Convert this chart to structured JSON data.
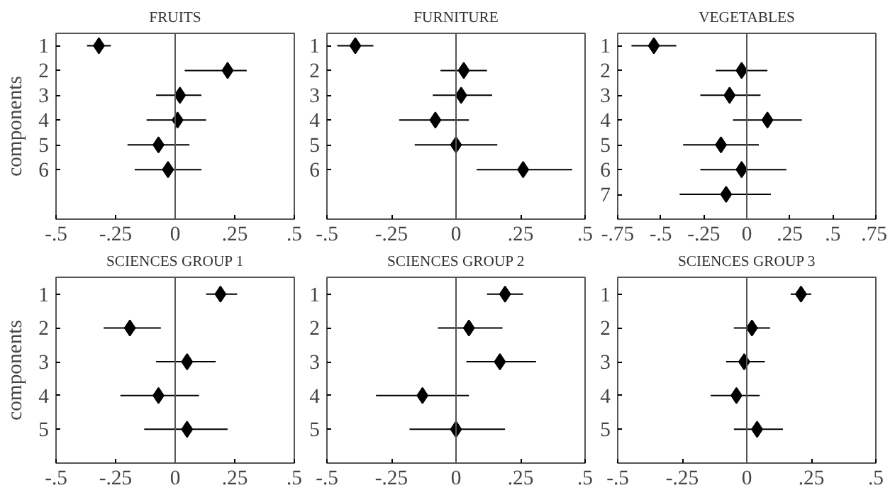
{
  "chart_data": [
    {
      "type": "scatter",
      "title": "FRUITS",
      "ylabel": "components",
      "orientation": "horizontal",
      "marker": "diamond",
      "categories": [
        "1",
        "2",
        "3",
        "4",
        "5",
        "6"
      ],
      "series": [
        {
          "color": "#000000",
          "values": [
            -0.32,
            0.22,
            0.02,
            0.01,
            -0.07,
            -0.03
          ],
          "errors": [
            [
              -0.37,
              -0.27
            ],
            [
              0.04,
              0.3
            ],
            [
              -0.08,
              0.11
            ],
            [
              -0.12,
              0.13
            ],
            [
              -0.2,
              0.06
            ],
            [
              -0.17,
              0.11
            ]
          ]
        }
      ],
      "xlim": [
        -0.5,
        0.5
      ],
      "xticks": [
        {
          "value": -0.5,
          "label": "-.5"
        },
        {
          "value": -0.25,
          "label": "-.25"
        },
        0,
        {
          "value": 0.25,
          "label": ".25"
        },
        {
          "value": 0.5,
          "label": ".5"
        }
      ],
      "ref_lines": [
        {
          "axis": "x",
          "value": 0,
          "color": "#555555"
        }
      ]
    },
    {
      "type": "scatter",
      "title": "FURNITURE",
      "orientation": "horizontal",
      "marker": "diamond",
      "categories": [
        "1",
        "2",
        "3",
        "4",
        "5",
        "6"
      ],
      "series": [
        {
          "color": "#000000",
          "values": [
            -0.39,
            0.03,
            0.02,
            -0.08,
            0,
            0.26
          ],
          "errors": [
            [
              -0.46,
              -0.32
            ],
            [
              -0.06,
              0.12
            ],
            [
              -0.09,
              0.14
            ],
            [
              -0.22,
              0.05
            ],
            [
              -0.16,
              0.16
            ],
            [
              0.08,
              0.45
            ]
          ]
        }
      ],
      "xlim": [
        -0.5,
        0.5
      ],
      "xticks": [
        {
          "value": -0.5,
          "label": "-.5"
        },
        {
          "value": -0.25,
          "label": "-.25"
        },
        0,
        {
          "value": 0.25,
          "label": ".25"
        },
        {
          "value": 0.5,
          "label": ".5"
        }
      ],
      "ref_lines": [
        {
          "axis": "x",
          "value": 0,
          "color": "#555555"
        }
      ]
    },
    {
      "type": "scatter",
      "title": "VEGETABLES",
      "orientation": "horizontal",
      "marker": "diamond",
      "categories": [
        "1",
        "2",
        "3",
        "4",
        "5",
        "6",
        "7"
      ],
      "series": [
        {
          "color": "#000000",
          "values": [
            -0.54,
            -0.03,
            -0.1,
            0.12,
            -0.15,
            -0.03,
            -0.12
          ],
          "errors": [
            [
              -0.67,
              -0.41
            ],
            [
              -0.18,
              0.12
            ],
            [
              -0.27,
              0.08
            ],
            [
              -0.08,
              0.32
            ],
            [
              -0.37,
              0.07
            ],
            [
              -0.27,
              0.23
            ],
            [
              -0.39,
              0.14
            ]
          ]
        }
      ],
      "xlim": [
        -0.75,
        0.75
      ],
      "xticks": [
        {
          "value": -0.75,
          "label": "-.75"
        },
        {
          "value": -0.5,
          "label": "-.5"
        },
        {
          "value": -0.25,
          "label": "-.25"
        },
        0,
        {
          "value": 0.25,
          "label": ".25"
        },
        {
          "value": 0.5,
          "label": ".5"
        },
        {
          "value": 0.75,
          "label": ".75"
        }
      ],
      "ref_lines": [
        {
          "axis": "x",
          "value": 0,
          "color": "#555555"
        }
      ]
    },
    {
      "type": "scatter",
      "title": "SCIENCES GROUP 1",
      "ylabel": "components",
      "orientation": "horizontal",
      "marker": "diamond",
      "categories": [
        "1",
        "2",
        "3",
        "4",
        "5"
      ],
      "series": [
        {
          "color": "#000000",
          "values": [
            0.19,
            -0.19,
            0.05,
            -0.07,
            0.05
          ],
          "errors": [
            [
              0.13,
              0.26
            ],
            [
              -0.3,
              -0.06
            ],
            [
              -0.08,
              0.17
            ],
            [
              -0.23,
              0.1
            ],
            [
              -0.13,
              0.22
            ]
          ]
        }
      ],
      "xlim": [
        -0.5,
        0.5
      ],
      "xticks": [
        {
          "value": -0.5,
          "label": "-.5"
        },
        {
          "value": -0.25,
          "label": "-.25"
        },
        0,
        {
          "value": 0.25,
          "label": ".25"
        },
        {
          "value": 0.5,
          "label": ".5"
        }
      ],
      "ref_lines": [
        {
          "axis": "x",
          "value": 0,
          "color": "#555555"
        }
      ]
    },
    {
      "type": "scatter",
      "title": "SCIENCES GROUP 2",
      "orientation": "horizontal",
      "marker": "diamond",
      "categories": [
        "1",
        "2",
        "3",
        "4",
        "5"
      ],
      "series": [
        {
          "color": "#000000",
          "values": [
            0.19,
            0.05,
            0.17,
            -0.13,
            0
          ],
          "errors": [
            [
              0.12,
              0.26
            ],
            [
              -0.07,
              0.18
            ],
            [
              0.04,
              0.31
            ],
            [
              -0.31,
              0.05
            ],
            [
              -0.18,
              0.19
            ]
          ]
        }
      ],
      "xlim": [
        -0.5,
        0.5
      ],
      "xticks": [
        {
          "value": -0.5,
          "label": "-.5"
        },
        {
          "value": -0.25,
          "label": "-.25"
        },
        0,
        {
          "value": 0.25,
          "label": ".25"
        },
        {
          "value": 0.5,
          "label": ".5"
        }
      ],
      "ref_lines": [
        {
          "axis": "x",
          "value": 0,
          "color": "#555555"
        }
      ]
    },
    {
      "type": "scatter",
      "title": "SCIENCES GROUP 3",
      "orientation": "horizontal",
      "marker": "diamond",
      "categories": [
        "1",
        "2",
        "3",
        "4",
        "5"
      ],
      "series": [
        {
          "color": "#000000",
          "values": [
            0.21,
            0.02,
            -0.01,
            -0.04,
            0.04
          ],
          "errors": [
            [
              0.17,
              0.25
            ],
            [
              -0.05,
              0.09
            ],
            [
              -0.08,
              0.07
            ],
            [
              -0.14,
              0.05
            ],
            [
              -0.05,
              0.14
            ]
          ]
        }
      ],
      "xlim": [
        -0.5,
        0.5
      ],
      "xticks": [
        {
          "value": -0.5,
          "label": "-.5"
        },
        {
          "value": -0.25,
          "label": "-.25"
        },
        0,
        {
          "value": 0.25,
          "label": ".25"
        },
        {
          "value": 0.5,
          "label": ".5"
        }
      ],
      "ref_lines": [
        {
          "axis": "x",
          "value": 0,
          "color": "#555555"
        }
      ]
    }
  ]
}
